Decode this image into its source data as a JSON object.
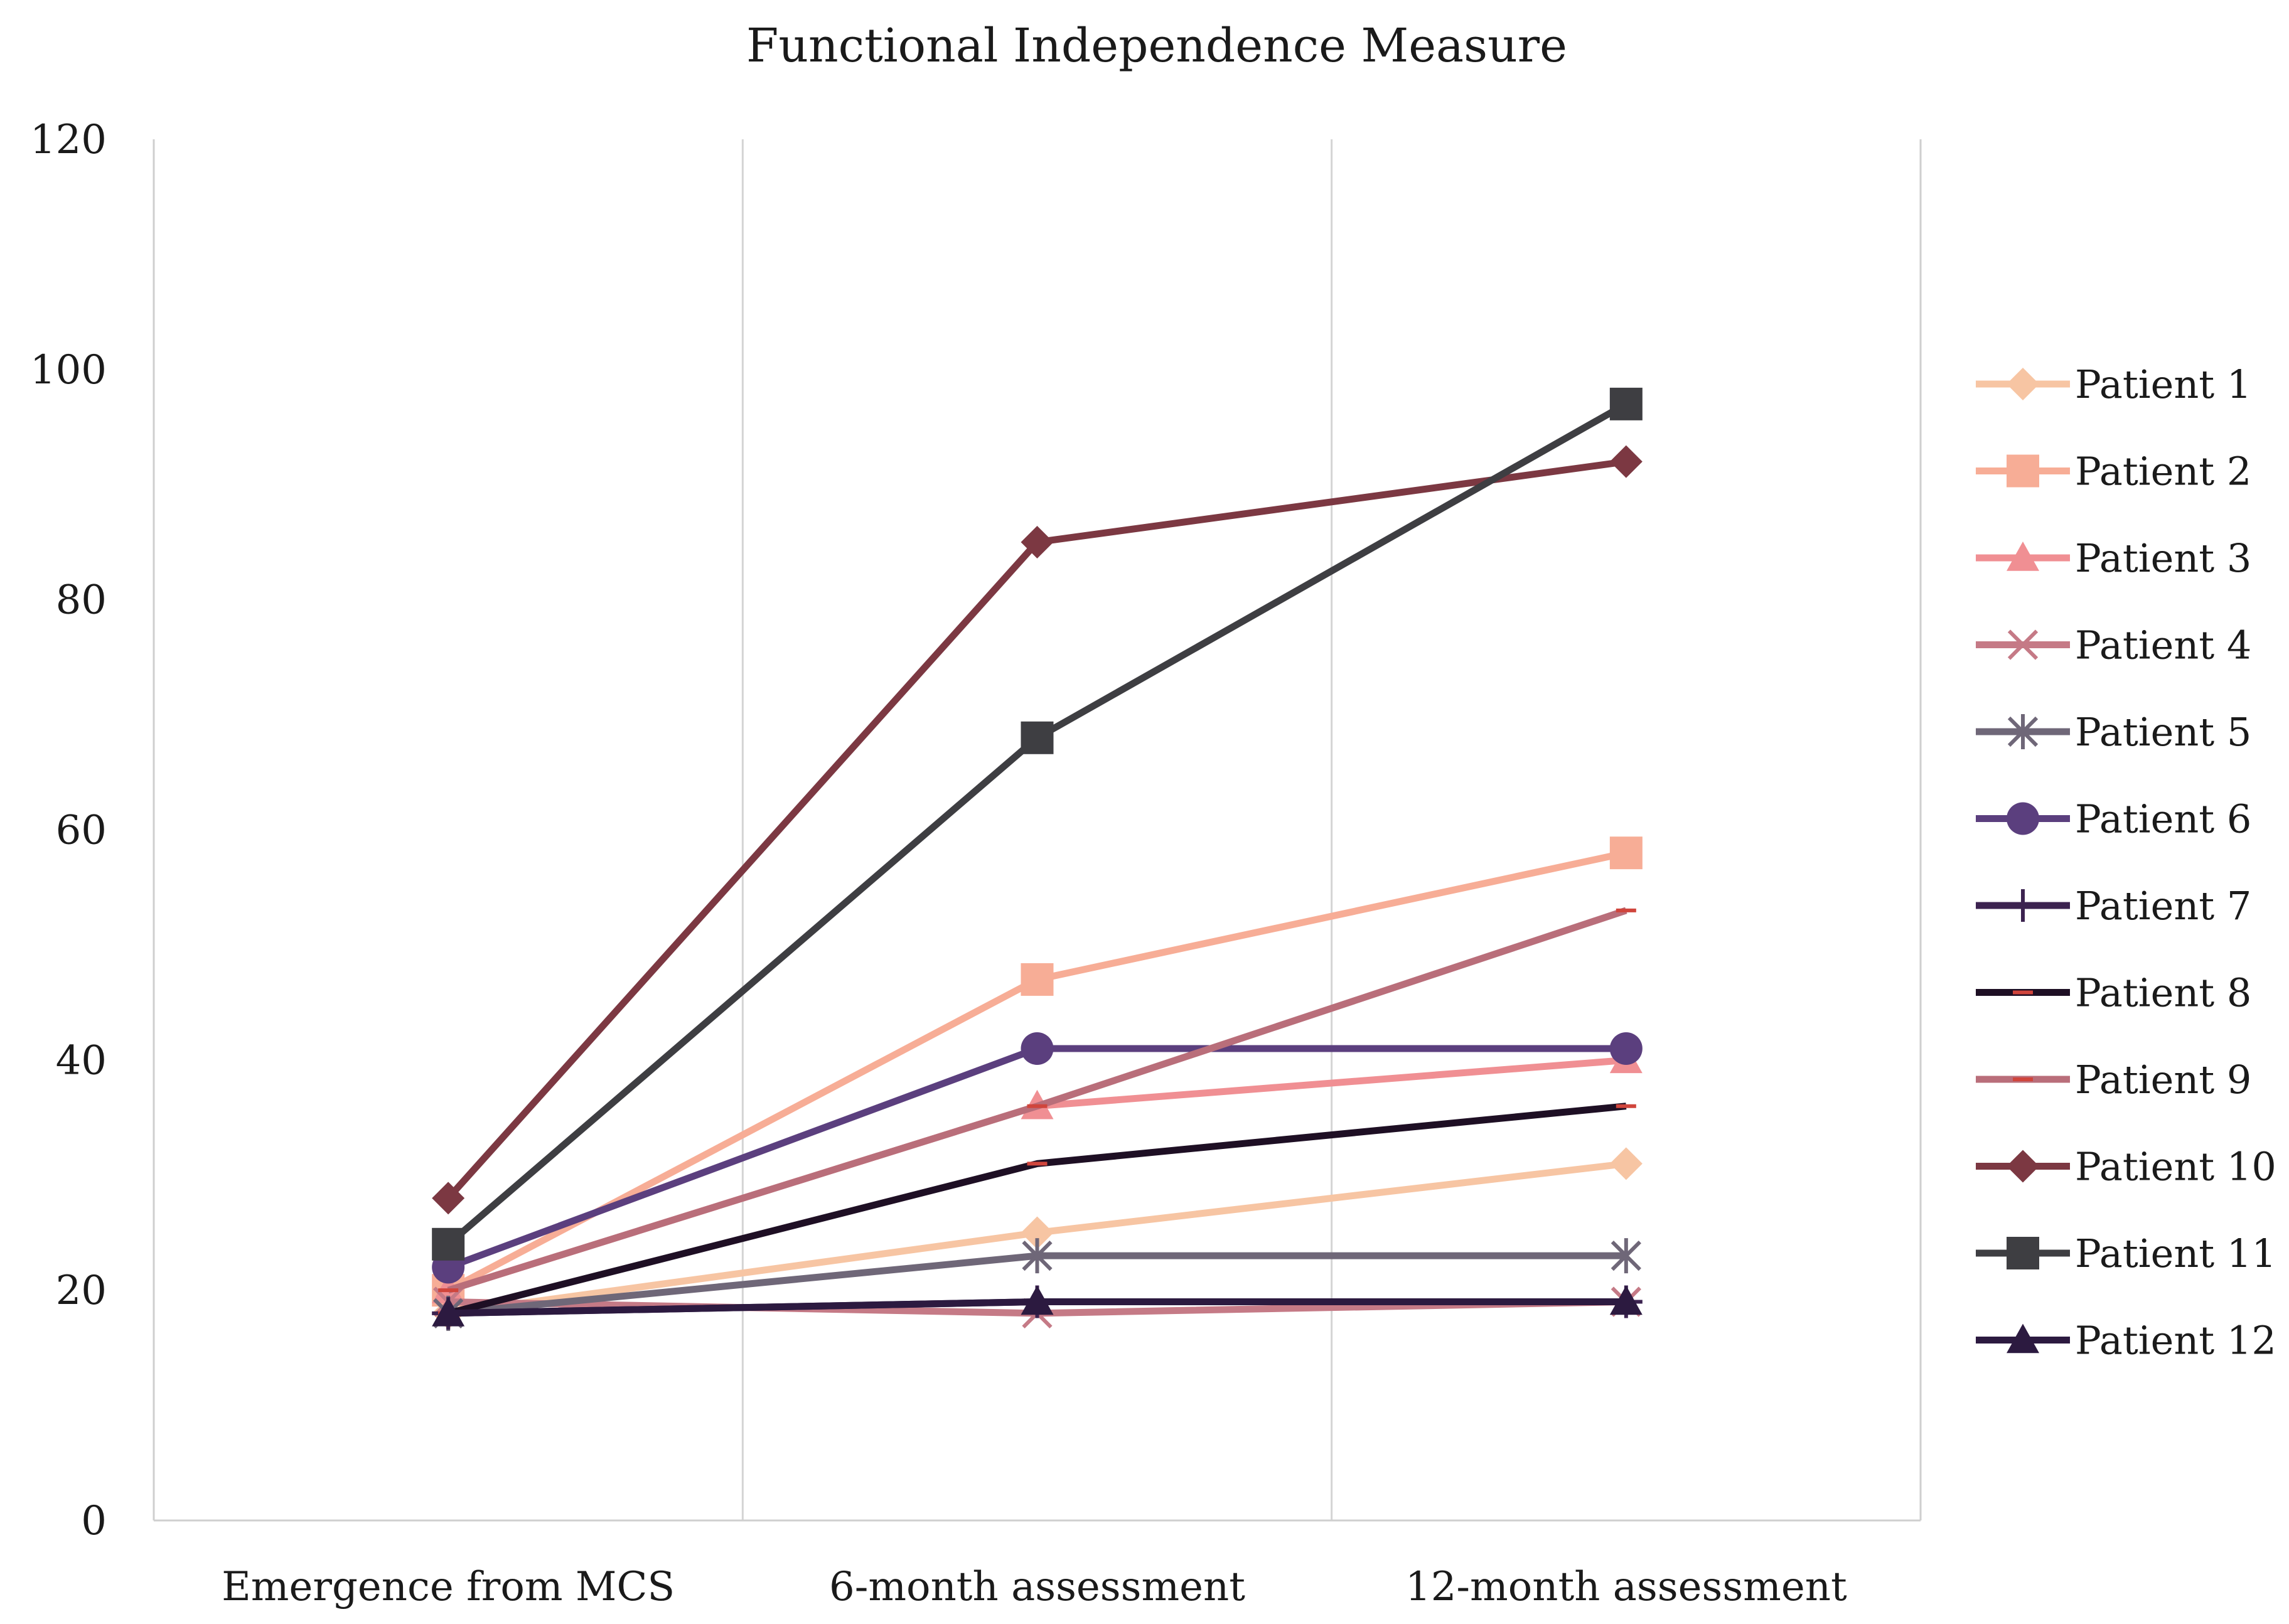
{
  "chart_data": {
    "type": "line",
    "title": "Functional Independence Measure",
    "categories": [
      "Emergence from MCS",
      "6-month assessment",
      "12-month assessment"
    ],
    "ylim": [
      0,
      120
    ],
    "yticks": [
      0,
      20,
      40,
      60,
      80,
      100,
      120
    ],
    "xlabel": "",
    "ylabel": "",
    "legend_position": "right",
    "series": [
      {
        "name": "Patient 1",
        "values": [
          18,
          25,
          31
        ],
        "color": "#F7C5A3",
        "marker": "diamond"
      },
      {
        "name": "Patient 2",
        "values": [
          20,
          47,
          58
        ],
        "color": "#F7AD96",
        "marker": "square"
      },
      {
        "name": "Patient 3",
        "values": [
          20,
          36,
          40
        ],
        "color": "#F08F93",
        "marker": "triangle"
      },
      {
        "name": "Patient 4",
        "values": [
          19,
          18,
          19
        ],
        "color": "#C57A86",
        "marker": "x"
      },
      {
        "name": "Patient 5",
        "values": [
          18,
          23,
          23
        ],
        "color": "#6F6778",
        "marker": "star"
      },
      {
        "name": "Patient 6",
        "values": [
          22,
          41,
          41
        ],
        "color": "#5B3F7E",
        "marker": "circle"
      },
      {
        "name": "Patient 7",
        "values": [
          18,
          19,
          19
        ],
        "color": "#3C2350",
        "marker": "plus"
      },
      {
        "name": "Patient 8",
        "values": [
          18,
          31,
          36
        ],
        "color": "#1E0F24",
        "marker": "dash"
      },
      {
        "name": "Patient 9",
        "values": [
          20,
          36,
          53
        ],
        "color": "#B96E7A",
        "marker": "dash"
      },
      {
        "name": "Patient 10",
        "values": [
          28,
          85,
          92
        ],
        "color": "#7C3842",
        "marker": "diamond"
      },
      {
        "name": "Patient 11",
        "values": [
          24,
          68,
          97
        ],
        "color": "#3E3E42",
        "marker": "square"
      },
      {
        "name": "Patient 12",
        "values": [
          18,
          19,
          19
        ],
        "color": "#2C1A40",
        "marker": "triangle"
      }
    ]
  }
}
